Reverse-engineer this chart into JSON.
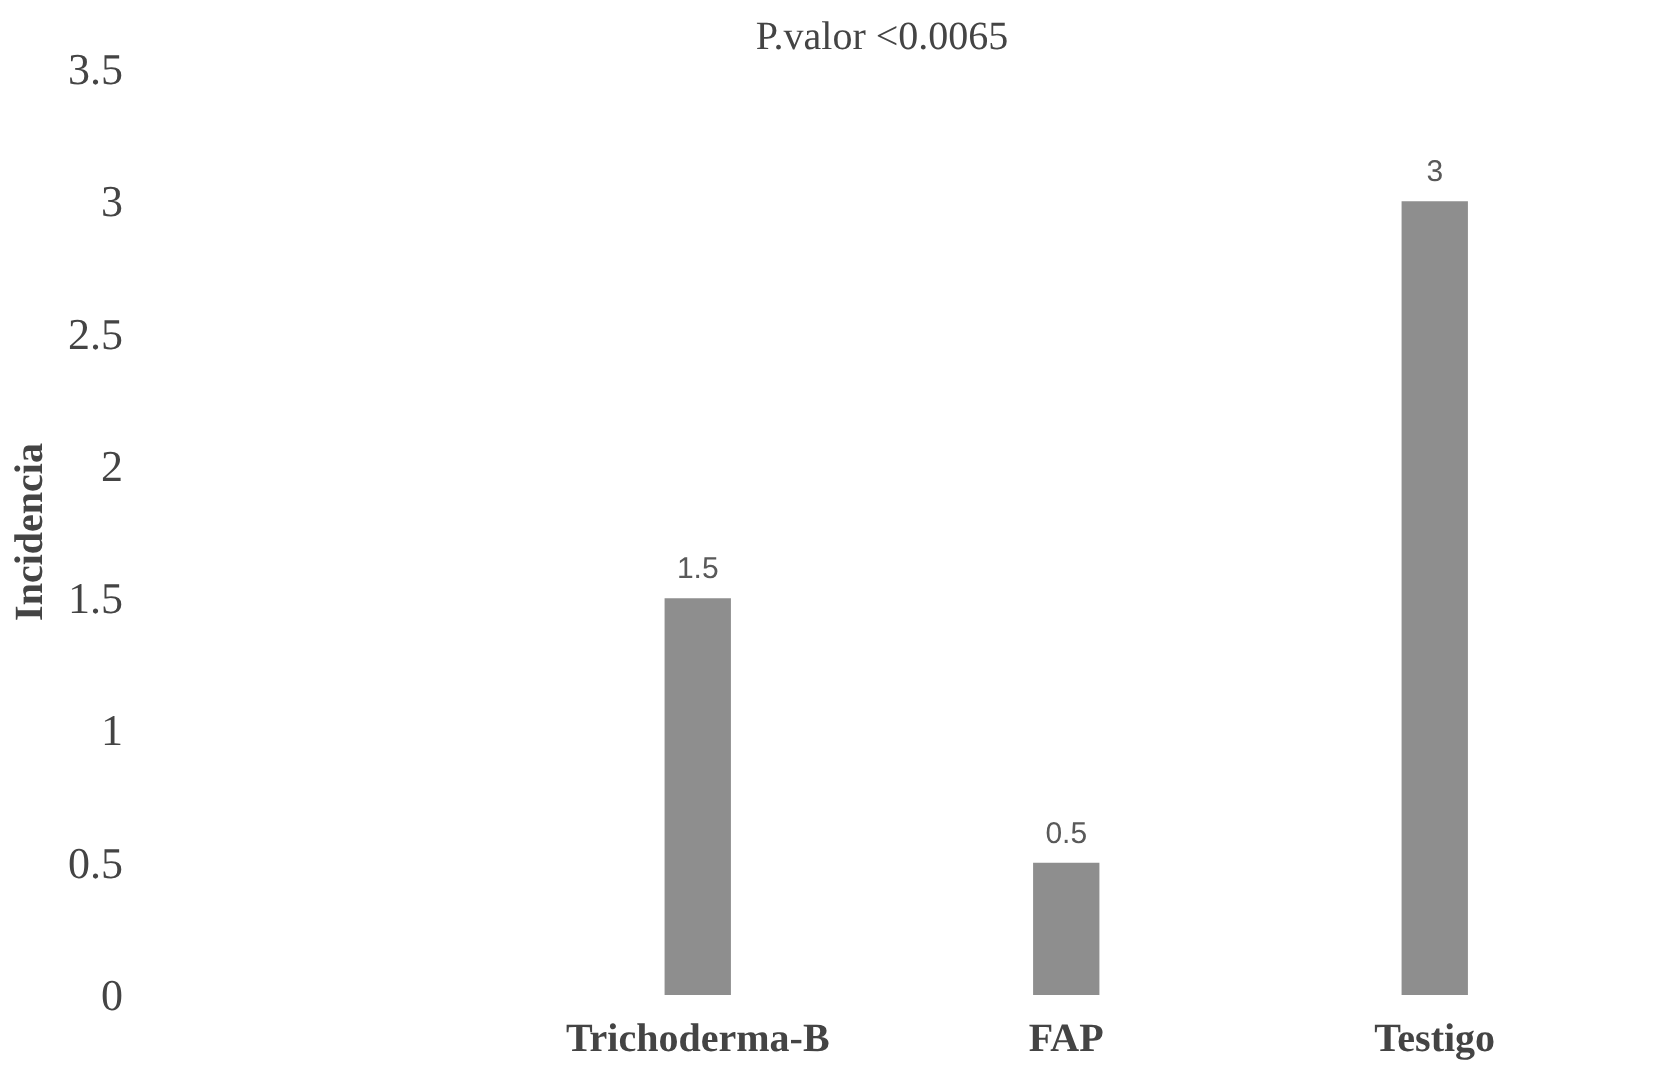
{
  "chart_data": {
    "type": "bar",
    "title": "P.valor <0.0065",
    "ylabel": "Incidencia",
    "categories": [
      null,
      "Trichoderma-B",
      "FAP",
      "Testigo"
    ],
    "values": [
      null,
      1.5,
      0.5,
      3
    ],
    "color": "#8e8e8e",
    "ylim": [
      0,
      3.5
    ],
    "yticks": [
      0,
      0.5,
      1,
      1.5,
      2,
      2.5,
      3,
      3.5
    ],
    "grid": false,
    "data_labels": true
  }
}
